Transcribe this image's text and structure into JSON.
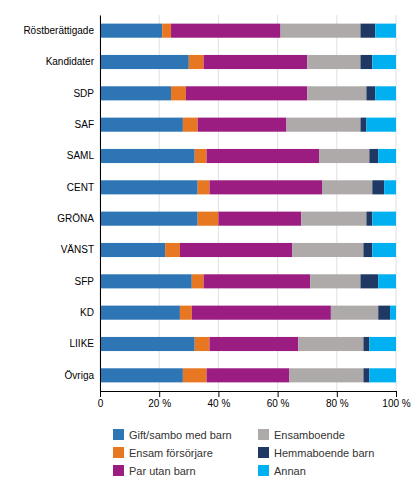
{
  "chart_data": {
    "type": "bar",
    "orientation": "horizontal",
    "stacked": true,
    "categories": [
      "Röstberättigade",
      "Kandidater",
      "SDP",
      "SAF",
      "SAML",
      "CENT",
      "GRÖNA",
      "VÄNST",
      "SFP",
      "KD",
      "LIIKE",
      "Övriga"
    ],
    "series": [
      {
        "name": "Gift/sambo med barn",
        "color": "#2E75B6",
        "values": [
          21,
          30,
          24,
          28,
          32,
          33,
          33,
          22,
          31,
          27,
          32,
          28
        ]
      },
      {
        "name": "Ensam försörjare",
        "color": "#E87722",
        "values": [
          3,
          5,
          5,
          5,
          4,
          4,
          7,
          5,
          4,
          4,
          5,
          8
        ]
      },
      {
        "name": "Par utan barn",
        "color": "#9B1D82",
        "values": [
          37,
          35,
          41,
          30,
          38,
          38,
          28,
          38,
          36,
          47,
          30,
          28
        ]
      },
      {
        "name": "Ensamboende",
        "color": "#AEAAAA",
        "values": [
          27,
          18,
          20,
          25,
          17,
          17,
          22,
          24,
          17,
          16,
          22,
          25
        ]
      },
      {
        "name": "Hemmaboende barn",
        "color": "#1F3864",
        "values": [
          5,
          4,
          3,
          2,
          3,
          4,
          2,
          3,
          6,
          4,
          2,
          2
        ]
      },
      {
        "name": "Annan",
        "color": "#00B0F0",
        "values": [
          7,
          8,
          7,
          10,
          6,
          4,
          8,
          8,
          6,
          2,
          9,
          9
        ]
      }
    ],
    "xlim": [
      0,
      100
    ],
    "xticks": [
      0,
      {
        "value": 20,
        "label": "20 %"
      },
      {
        "value": 40,
        "label": "40 %"
      },
      {
        "value": 60,
        "label": "60 %"
      },
      {
        "value": 80,
        "label": "80 %"
      },
      {
        "value": 100,
        "label": "100 %"
      }
    ],
    "grid": true,
    "legend": "bottom"
  }
}
